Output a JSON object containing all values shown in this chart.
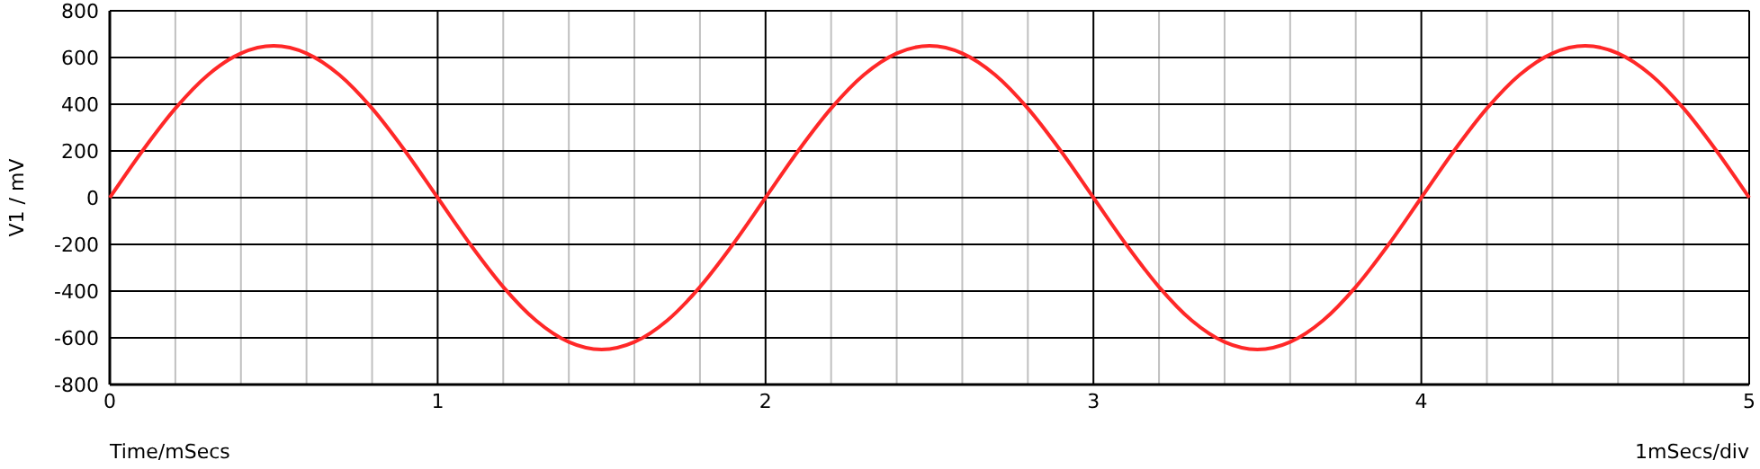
{
  "chart_data": {
    "type": "line",
    "xlabel": "Time/mSecs",
    "ylabel": "V1 / mV",
    "annotations": [
      "1mSecs/div"
    ],
    "x": [
      0,
      0.1,
      0.2,
      0.3,
      0.4,
      0.5,
      0.6,
      0.7,
      0.8,
      0.9,
      1,
      1.1,
      1.2,
      1.3,
      1.4,
      1.5,
      1.6,
      1.7,
      1.8,
      1.9,
      2,
      2.1,
      2.2,
      2.3,
      2.4,
      2.5,
      2.6,
      2.7,
      2.8,
      2.9,
      3,
      3.1,
      3.2,
      3.3,
      3.4,
      3.5,
      3.6,
      3.7,
      3.8,
      3.9,
      4,
      4.1,
      4.2,
      4.3,
      4.4,
      4.5,
      4.6,
      4.7,
      4.8,
      4.9,
      5
    ],
    "series": [
      {
        "color": "#ff2828",
        "values": [
          0,
          201,
          382,
          526,
          618,
          650,
          618,
          526,
          382,
          201,
          0,
          -201,
          -382,
          -526,
          -618,
          -650,
          -618,
          -526,
          -382,
          -201,
          0,
          201,
          382,
          526,
          618,
          650,
          618,
          526,
          382,
          201,
          0,
          -201,
          -382,
          -526,
          -618,
          -650,
          -618,
          -526,
          -382,
          -201,
          0,
          201,
          382,
          526,
          618,
          650,
          618,
          526,
          382,
          201,
          0
        ]
      }
    ],
    "xlim": [
      0,
      5
    ],
    "ylim": [
      -800,
      800
    ],
    "xticks": [
      0,
      {
        "value": 0.2,
        "label": null
      },
      {
        "value": 0.4,
        "label": null
      },
      {
        "value": 0.6,
        "label": null
      },
      {
        "value": 0.8,
        "label": null
      },
      1,
      {
        "value": 1.2,
        "label": null
      },
      {
        "value": 1.4,
        "label": null
      },
      {
        "value": 1.6,
        "label": null
      },
      {
        "value": 1.8,
        "label": null
      },
      2,
      {
        "value": 2.2,
        "label": null
      },
      {
        "value": 2.4,
        "label": null
      },
      {
        "value": 2.6,
        "label": null
      },
      {
        "value": 2.8,
        "label": null
      },
      3,
      {
        "value": 3.2,
        "label": null
      },
      {
        "value": 3.4,
        "label": null
      },
      {
        "value": 3.6,
        "label": null
      },
      {
        "value": 3.8,
        "label": null
      },
      4,
      {
        "value": 4.2,
        "label": null
      },
      {
        "value": 4.4,
        "label": null
      },
      {
        "value": 4.6,
        "label": null
      },
      {
        "value": 4.8,
        "label": null
      },
      5
    ],
    "yticks": [
      -800,
      -600,
      -400,
      -200,
      0,
      200,
      400,
      600,
      800
    ],
    "grid": true,
    "marker": "none",
    "line_style": "solid"
  }
}
